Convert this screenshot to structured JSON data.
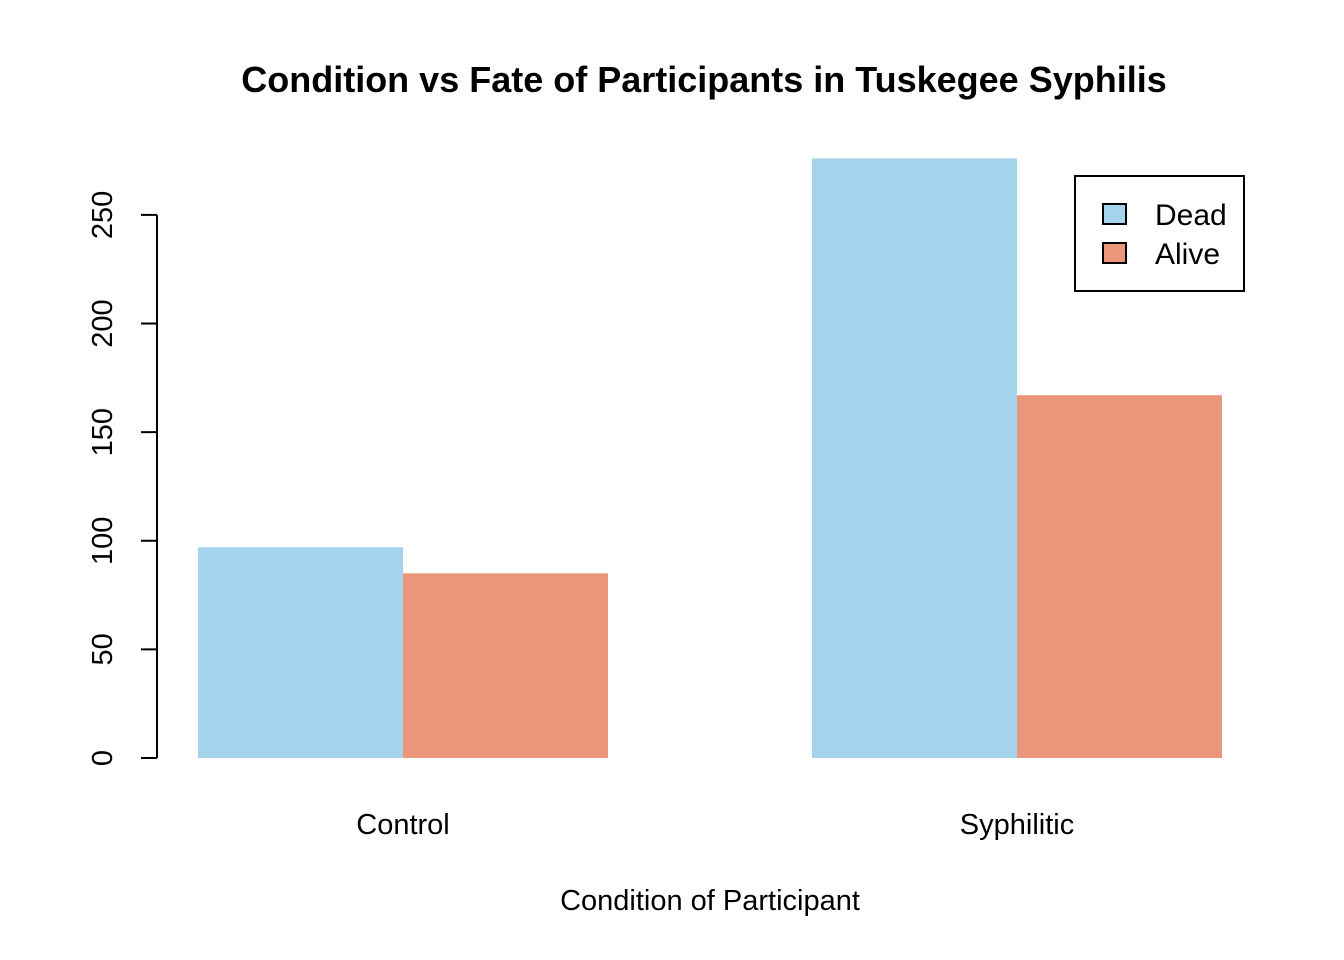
{
  "chart_data": {
    "type": "bar",
    "title": "Condition vs Fate of Participants in Tuskegee Syphilis",
    "xlabel": "Condition of Participant",
    "ylabel": "",
    "categories": [
      "Control",
      "Syphilitic"
    ],
    "series": [
      {
        "name": "Dead",
        "values": [
          97,
          276
        ],
        "color": "#a6d3ec"
      },
      {
        "name": "Alive",
        "values": [
          85,
          167
        ],
        "color": "#ea967a"
      }
    ],
    "ylim": [
      0,
      276
    ],
    "yticks": [
      0,
      50,
      100,
      150,
      200,
      250
    ],
    "grid": false,
    "legend_position": "top-right",
    "bar_mode": "grouped"
  }
}
